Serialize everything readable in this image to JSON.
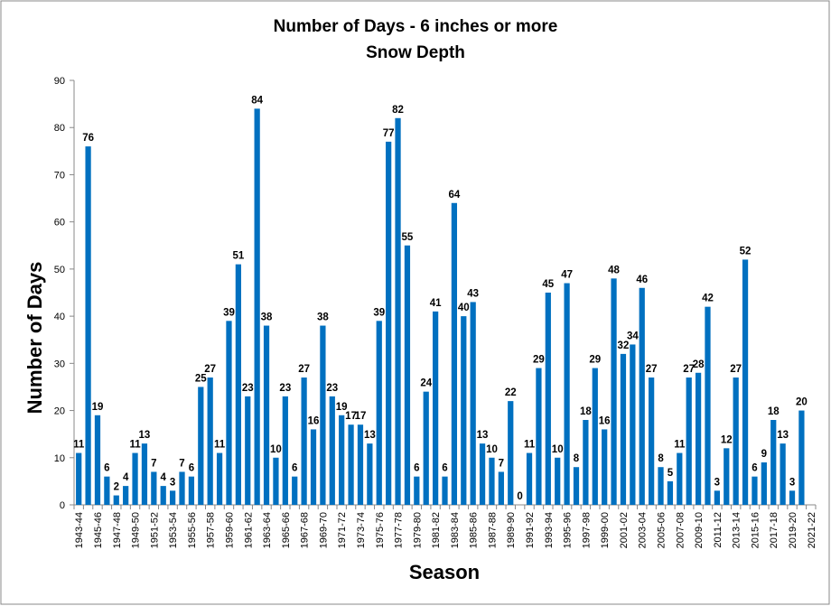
{
  "chart_data": {
    "type": "bar",
    "title": "Number of Days - 6 inches or more",
    "subtitle": "Snow Depth",
    "y_label": "Number of Days",
    "x_label": "Season",
    "color": "#0070c0",
    "grid": false,
    "ylim": [
      0,
      90
    ],
    "yticks": [
      0,
      10,
      20,
      30,
      40,
      50,
      60,
      70,
      80,
      90
    ],
    "categories": [
      "1943-44",
      null,
      "1945-46",
      null,
      "1947-48",
      null,
      "1949-50",
      null,
      "1951-52",
      null,
      "1953-54",
      null,
      "1955-56",
      null,
      "1957-58",
      null,
      "1959-60",
      null,
      "1961-62",
      null,
      "1963-64",
      null,
      "1965-66",
      null,
      "1967-68",
      null,
      "1969-70",
      null,
      "1971-72",
      null,
      "1973-74",
      null,
      "1975-76",
      null,
      "1977-78",
      null,
      "1979-80",
      null,
      "1981-82",
      null,
      "1983-84",
      null,
      "1985-86",
      null,
      "1987-88",
      null,
      "1989-90",
      null,
      "1991-92",
      null,
      "1993-94",
      null,
      "1995-96",
      null,
      "1997-98",
      null,
      "1999-00",
      null,
      "2001-02",
      null,
      "2003-04",
      null,
      "2005-06",
      null,
      "2007-08",
      null,
      "2009-10",
      null,
      "2011-12",
      null,
      "2013-14",
      null,
      "2015-16",
      null,
      "2017-18",
      null,
      "2019-20",
      null,
      "2021-22"
    ],
    "values": [
      11,
      76,
      19,
      6,
      2,
      4,
      11,
      13,
      7,
      4,
      3,
      7,
      6,
      25,
      27,
      11,
      39,
      51,
      23,
      84,
      38,
      10,
      23,
      6,
      27,
      16,
      38,
      23,
      19,
      17,
      17,
      13,
      39,
      77,
      82,
      55,
      6,
      24,
      41,
      6,
      64,
      40,
      43,
      13,
      10,
      7,
      22,
      0,
      11,
      29,
      45,
      10,
      47,
      8,
      18,
      29,
      16,
      48,
      32,
      34,
      46,
      27,
      8,
      5,
      11,
      27,
      28,
      42,
      3,
      12,
      27,
      52,
      6,
      9,
      18,
      13,
      3,
      20,
      null
    ]
  }
}
